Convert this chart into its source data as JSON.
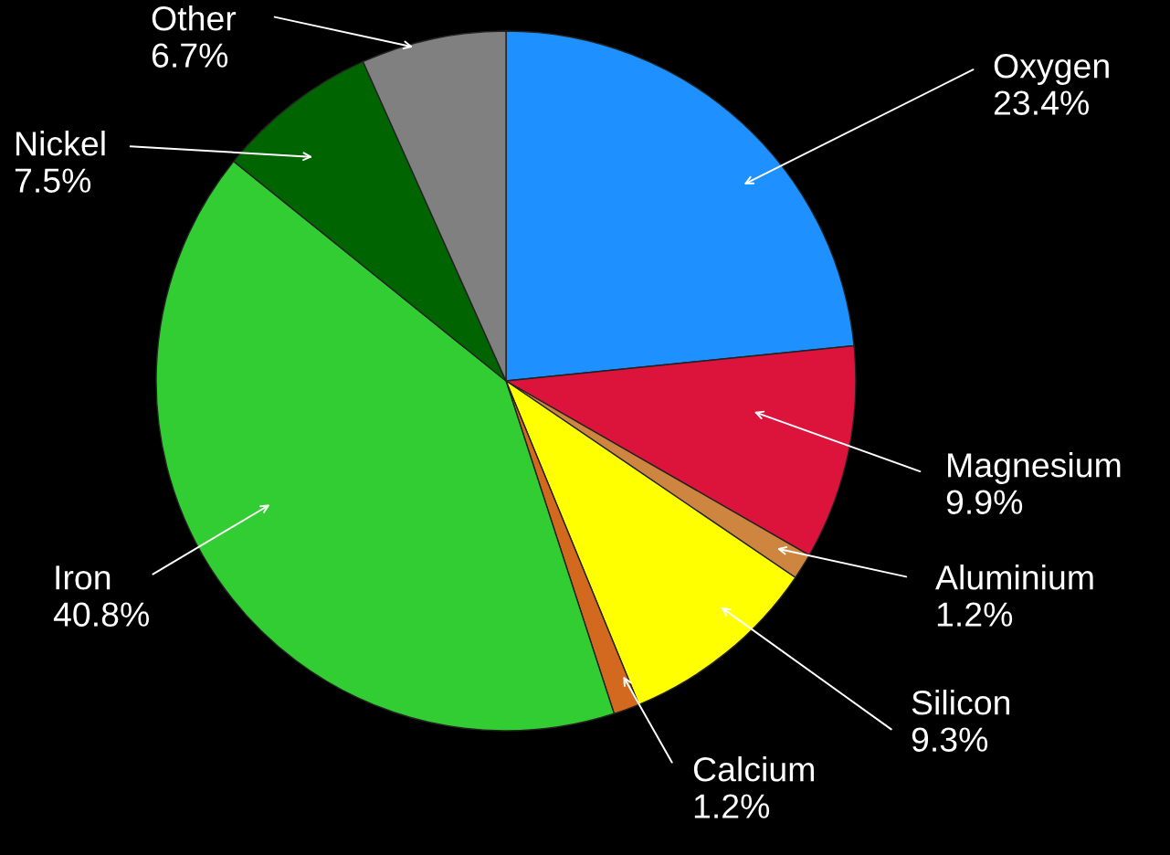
{
  "chart_data": {
    "type": "pie",
    "categories": [
      "Oxygen",
      "Magnesium",
      "Aluminium",
      "Silicon",
      "Calcium",
      "Iron",
      "Nickel",
      "Other"
    ],
    "values": [
      23.4,
      9.9,
      1.2,
      9.3,
      1.2,
      40.8,
      7.5,
      6.7
    ],
    "colors": [
      "#1e90ff",
      "#dc143c",
      "#cd853f",
      "#ffff00",
      "#d2691e",
      "#32cd32",
      "#006400",
      "#808080"
    ],
    "value_labels": [
      "23.4%",
      "9.9%",
      "1.2%",
      "9.3%",
      "1.2%",
      "40.8%",
      "7.5%",
      "6.7%"
    ]
  }
}
